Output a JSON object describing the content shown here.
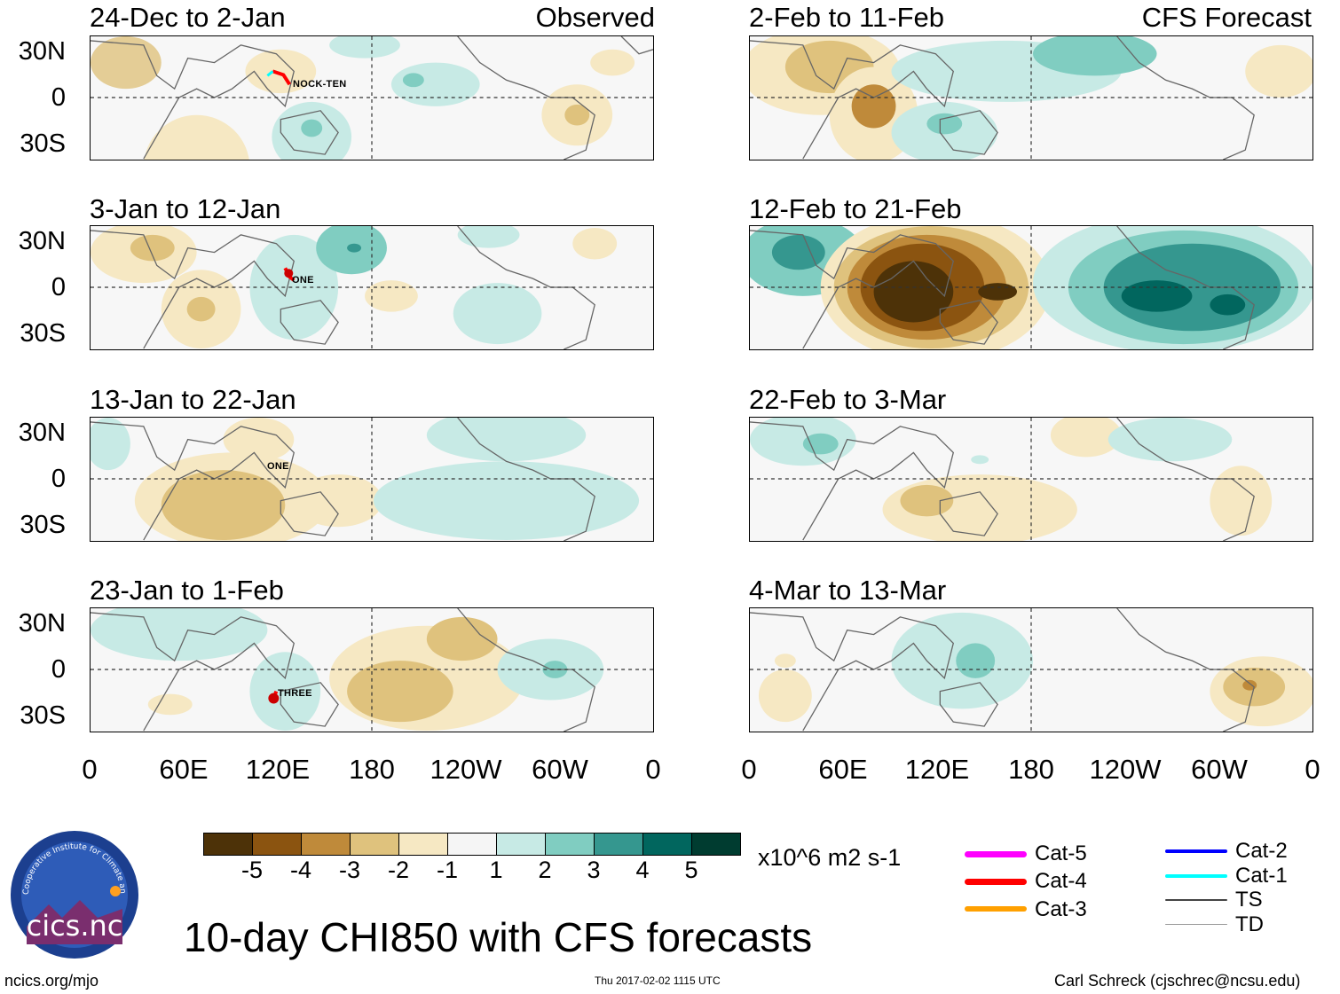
{
  "title": "10-day CHI850 with CFS forecasts",
  "columns": {
    "left_tag": "Observed",
    "right_tag": "CFS Forecast"
  },
  "panels_left": [
    {
      "period": "24-Dec to 2-Jan"
    },
    {
      "period": "3-Jan to 12-Jan"
    },
    {
      "period": "13-Jan to 22-Jan"
    },
    {
      "period": "23-Jan to 1-Feb"
    }
  ],
  "panels_right": [
    {
      "period": "2-Feb to 11-Feb"
    },
    {
      "period": "12-Feb to 21-Feb"
    },
    {
      "period": "22-Feb to 3-Mar"
    },
    {
      "period": "4-Mar to 13-Mar"
    }
  ],
  "lat_labels": [
    "30N",
    "0",
    "30S"
  ],
  "lon_labels": [
    "0",
    "60E",
    "120E",
    "180",
    "120W",
    "60W",
    "0"
  ],
  "storms": [
    {
      "name": "NOCK-TEN"
    },
    {
      "name": "ONE"
    },
    {
      "name": "ONE"
    },
    {
      "name": "THREE"
    }
  ],
  "colorbar": {
    "labels": [
      "-5",
      "-4",
      "-3",
      "-2",
      "-1",
      "1",
      "2",
      "3",
      "4",
      "5"
    ],
    "colors": [
      "#4d3208",
      "#8b5410",
      "#bf8a3a",
      "#dfc27d",
      "#f6e8c3",
      "#f5f5f5",
      "#c7eae5",
      "#80cdc1",
      "#35978f",
      "#01665e",
      "#003c30"
    ],
    "units": "x10^6 m2 s-1"
  },
  "storm_legend": [
    {
      "label": "Cat-5",
      "color": "#ff00ff"
    },
    {
      "label": "Cat-4",
      "color": "#ff0000"
    },
    {
      "label": "Cat-3",
      "color": "#ffa000"
    },
    {
      "label": "Cat-2",
      "color": "#0000ff"
    },
    {
      "label": "Cat-1",
      "color": "#00ffff"
    },
    {
      "label": "TS",
      "color": "#444444"
    },
    {
      "label": "TD",
      "color": "#999999"
    }
  ],
  "logo": {
    "text": "cics.nc",
    "ring_text": "Cooperative Institute for Climate and Satellites"
  },
  "footer": {
    "left": "ncics.org/mjo",
    "center": "Thu 2017-02-02 1115 UTC",
    "right": "Carl Schreck (cjschrec@ncsu.edu)"
  }
}
